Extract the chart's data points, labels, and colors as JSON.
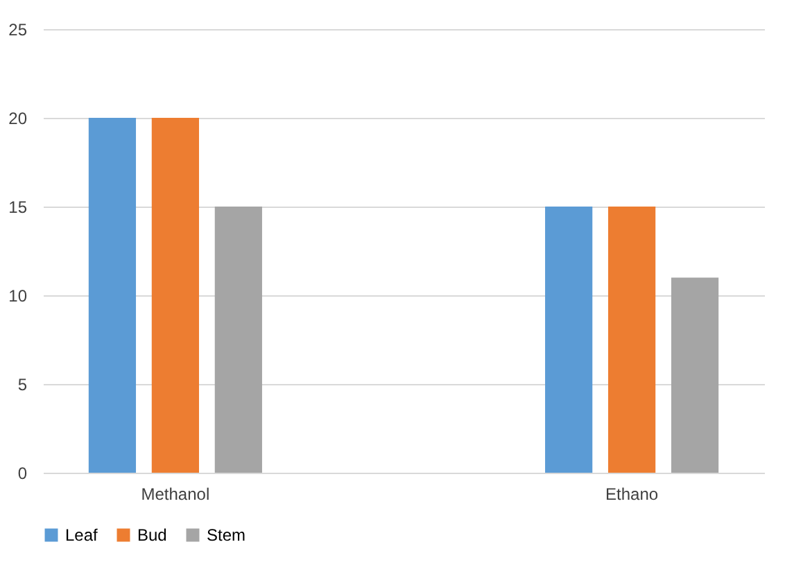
{
  "chart_data": {
    "type": "bar",
    "categories": [
      "Methanol",
      "Ethano"
    ],
    "series": [
      {
        "name": "Leaf",
        "color": "#5b9bd5",
        "values": [
          20,
          15
        ]
      },
      {
        "name": "Bud",
        "color": "#ed7d31",
        "values": [
          20,
          15
        ]
      },
      {
        "name": "Stem",
        "color": "#a5a5a5",
        "values": [
          15,
          11
        ]
      }
    ],
    "ylim": [
      0,
      25
    ],
    "yticks": [
      0,
      5,
      10,
      15,
      20,
      25
    ],
    "grid": "y",
    "legend": "bottom"
  }
}
